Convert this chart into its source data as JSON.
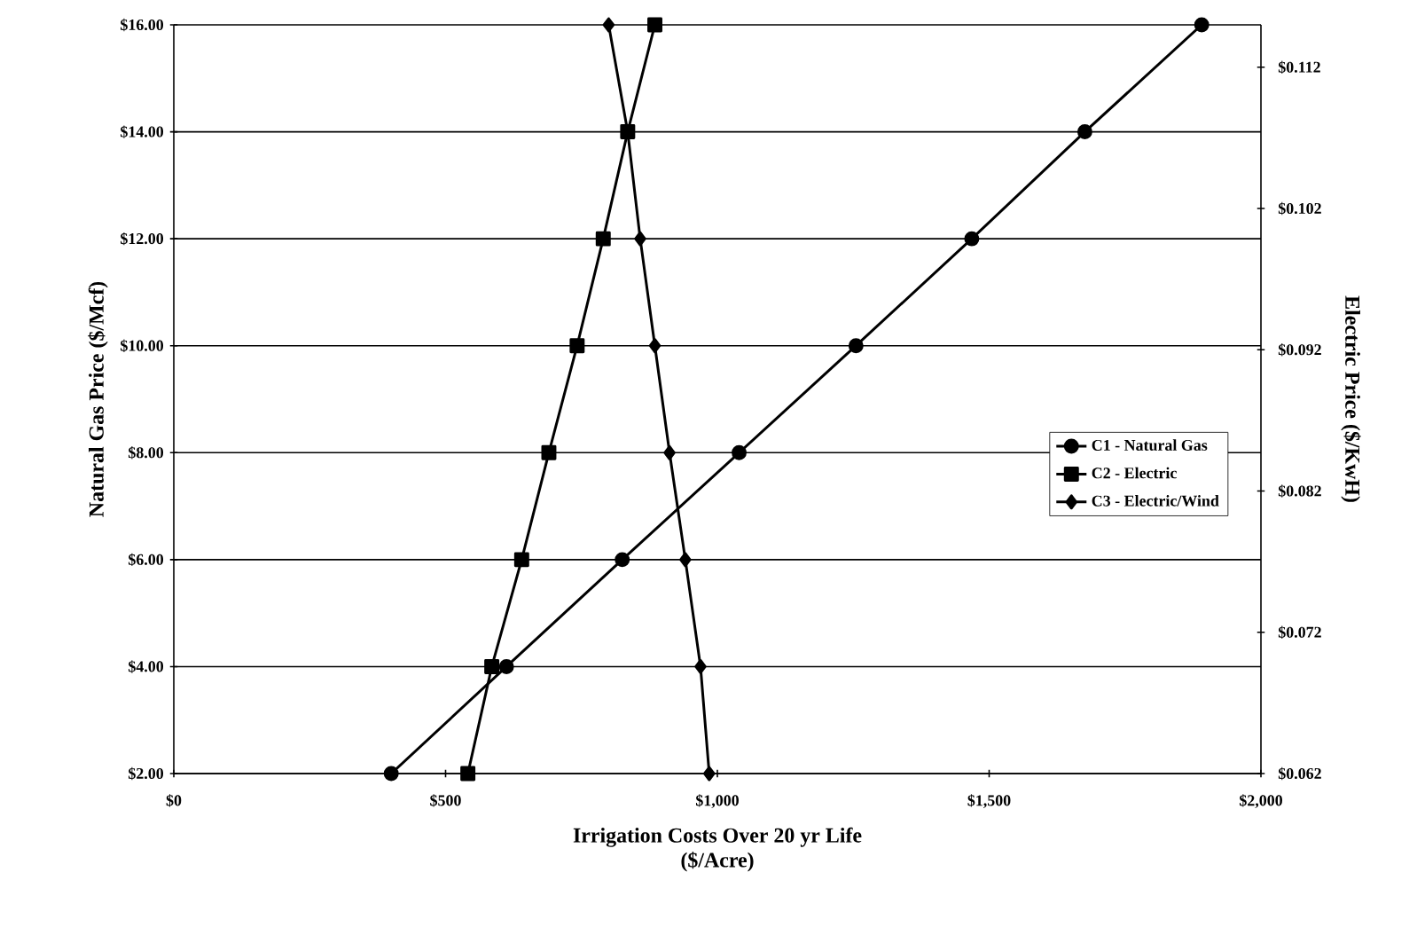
{
  "chart_data": {
    "type": "line",
    "xlabel": "Irrigation Costs Over 20 yr Life\n($/Acre)",
    "ylabel": "Natural Gas Price ($/Mcf)",
    "y2label": "Electric Price ($/KwH)",
    "series": [
      {
        "name": "C1 - Natural Gas",
        "color": "#000000",
        "marker": "circle",
        "x": [
          400,
          612,
          825,
          1040,
          1255,
          1468,
          1676,
          1891
        ],
        "values": [
          2,
          4,
          6,
          8,
          10,
          12,
          14,
          16
        ]
      },
      {
        "name": "C2 - Electric",
        "color": "#000000",
        "marker": "square",
        "x": [
          541,
          585,
          640,
          690,
          742,
          790,
          835,
          885
        ],
        "values": [
          2,
          4,
          6,
          8,
          10,
          12,
          14,
          16
        ]
      },
      {
        "name": "C3 - Electric/Wind",
        "color": "#000000",
        "marker": "diamond",
        "x": [
          985,
          969,
          941,
          912,
          885,
          858,
          835,
          800
        ],
        "values": [
          2,
          4,
          6,
          8,
          10,
          12,
          14,
          16
        ]
      }
    ],
    "xlim": [
      0,
      2000
    ],
    "ylim": [
      2,
      16
    ],
    "y2lim": [
      0.062,
      0.115
    ],
    "xticks": [
      {
        "value": 0,
        "label": "$0"
      },
      {
        "value": 500,
        "label": "$500"
      },
      {
        "value": 1000,
        "label": "$1,000"
      },
      {
        "value": 1500,
        "label": "$1,500"
      },
      {
        "value": 2000,
        "label": "$2,000"
      }
    ],
    "yticks": [
      {
        "value": 2,
        "label": "$2.00"
      },
      {
        "value": 4,
        "label": "$4.00"
      },
      {
        "value": 6,
        "label": "$6.00"
      },
      {
        "value": 8,
        "label": "$8.00"
      },
      {
        "value": 10,
        "label": "$10.00"
      },
      {
        "value": 12,
        "label": "$12.00"
      },
      {
        "value": 14,
        "label": "$14.00"
      },
      {
        "value": 16,
        "label": "$16.00"
      }
    ],
    "y2ticks": [
      {
        "value": 0.062,
        "label": "$0.062"
      },
      {
        "value": 0.072,
        "label": "$0.072"
      },
      {
        "value": 0.082,
        "label": "$0.082"
      },
      {
        "value": 0.092,
        "label": "$0.092"
      },
      {
        "value": 0.102,
        "label": "$0.102"
      },
      {
        "value": 0.112,
        "label": "$0.112"
      }
    ],
    "grid": "y",
    "legend": "right",
    "line_style": "solid"
  }
}
